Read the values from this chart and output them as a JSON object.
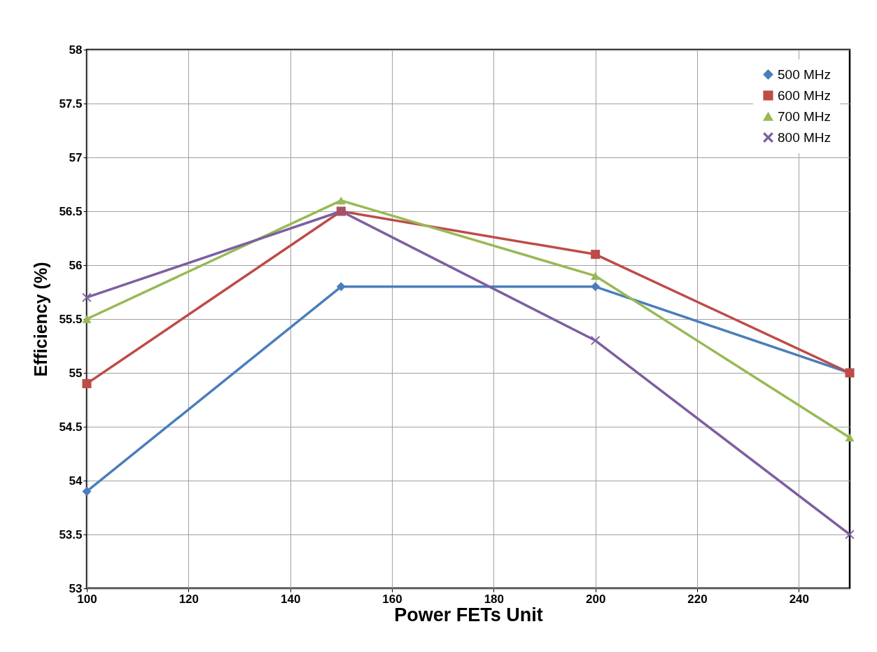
{
  "chart_data": {
    "type": "line",
    "xlabel": "Power FETs Unit",
    "ylabel": "Efficiency (%)",
    "xlim": [
      100,
      250
    ],
    "xticks": [
      100,
      120,
      140,
      160,
      180,
      200,
      220,
      240
    ],
    "ylim": [
      53,
      58
    ],
    "yticks": [
      53,
      53.5,
      54,
      54.5,
      55,
      55.5,
      56,
      56.5,
      57,
      57.5,
      58
    ],
    "x": [
      100,
      150,
      200,
      250
    ],
    "grid": true,
    "legend": "top right",
    "series": [
      {
        "name": "500 MHz",
        "color": "#4a7ebb",
        "marker": "diamond",
        "values": [
          53.9,
          55.8,
          55.8,
          55.0
        ]
      },
      {
        "name": "600 MHz",
        "color": "#be4b48",
        "marker": "square",
        "values": [
          54.9,
          56.5,
          56.1,
          55.0
        ]
      },
      {
        "name": "700 MHz",
        "color": "#98b954",
        "marker": "triangle",
        "values": [
          55.5,
          56.6,
          55.9,
          54.4
        ]
      },
      {
        "name": "800 MHz",
        "color": "#7d5fa0",
        "marker": "cross",
        "values": [
          55.7,
          56.5,
          55.3,
          53.5
        ]
      }
    ]
  }
}
